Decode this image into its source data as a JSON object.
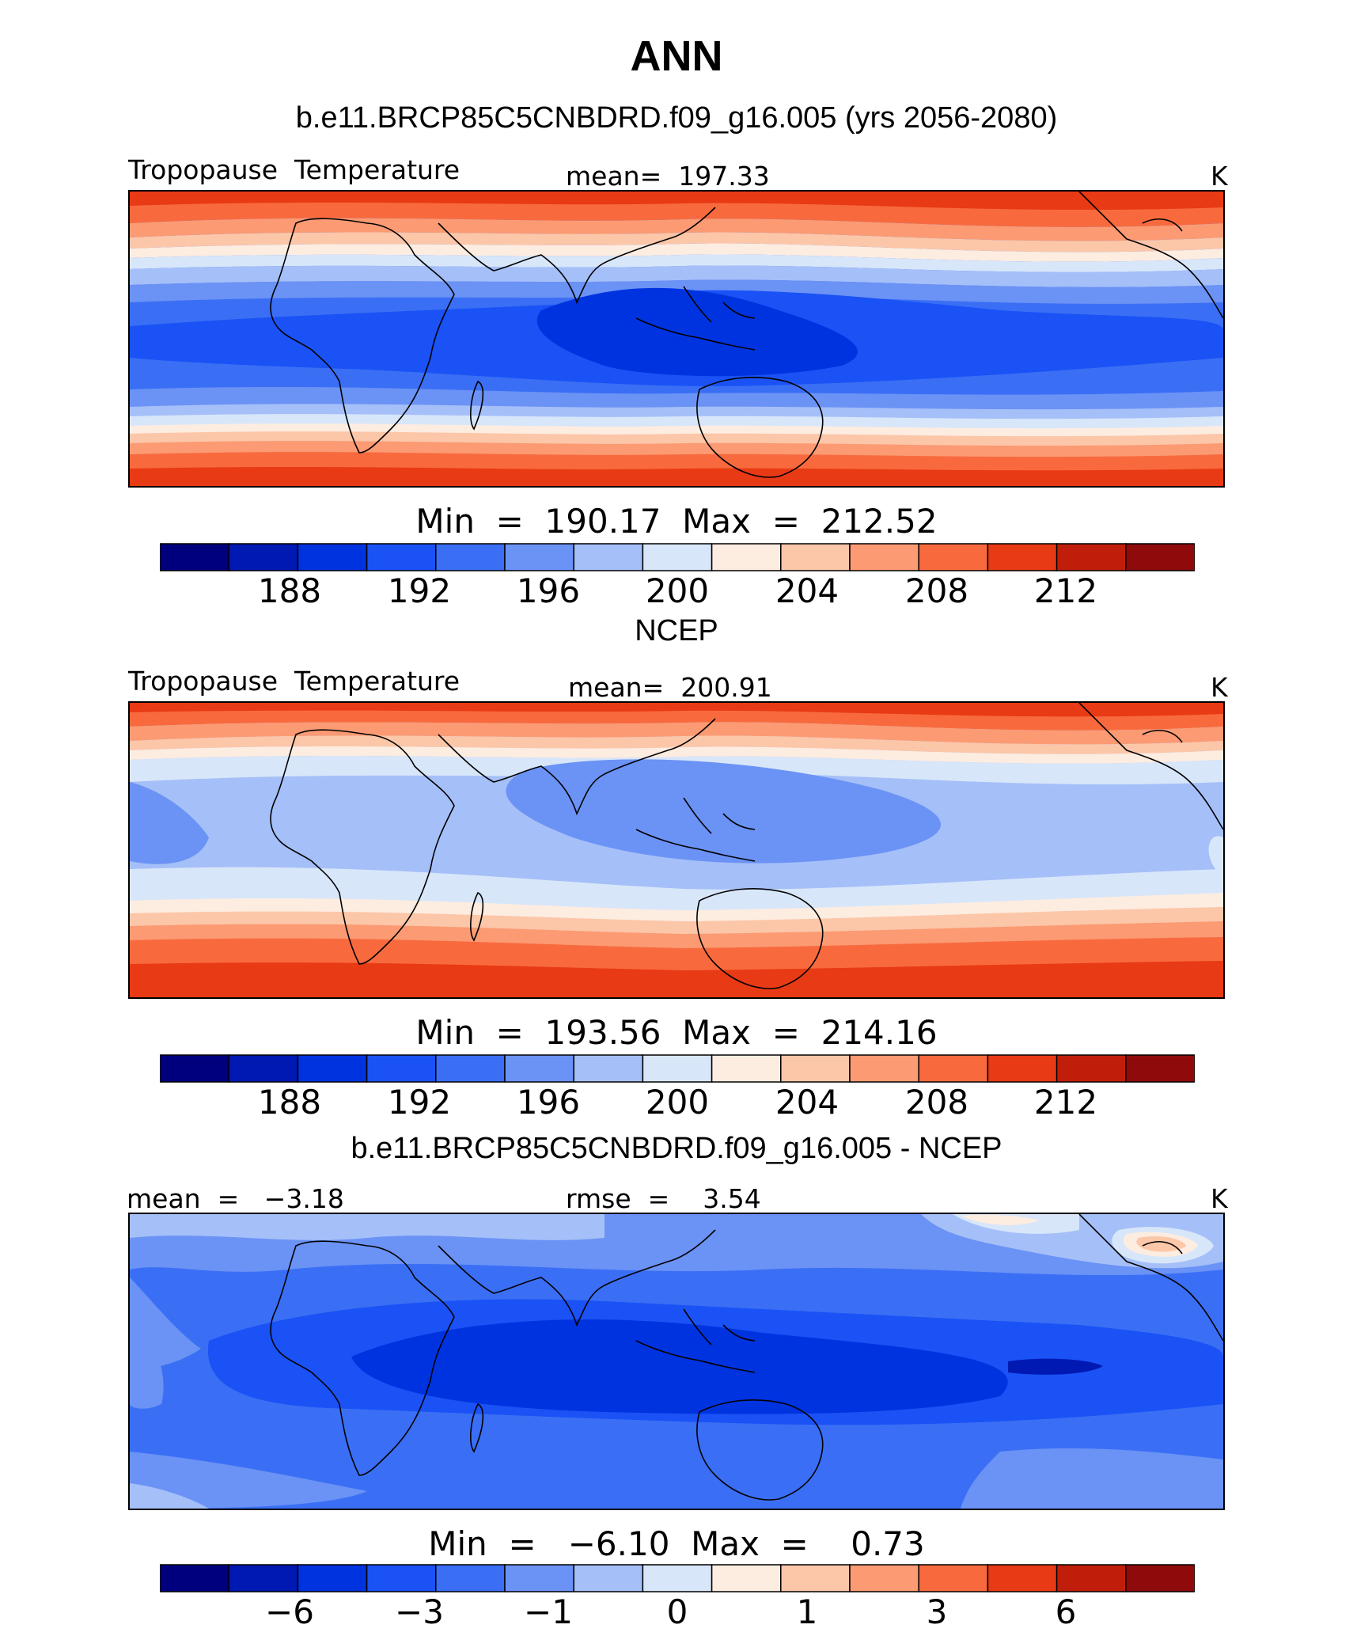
{
  "title": "ANN",
  "palette": [
    "#00007f",
    "#0019b2",
    "#0033e0",
    "#1a52f5",
    "#3a6ff5",
    "#6b92f5",
    "#a5bff8",
    "#d8e6fa",
    "#fdece0",
    "#fcc6a8",
    "#fb9a73",
    "#f86a3e",
    "#e83a14",
    "#c01e0a",
    "#8f0a0a"
  ],
  "panels": [
    {
      "title": "b.e11.BRCP85C5CNBDRD.f09_g16.005 (yrs 2056-2080)",
      "left_label": "Tropopause  Temperature",
      "center_label": "mean=  197.33",
      "units": "K",
      "stats": "Min  =  190.17  Max  =  212.52",
      "ticks": [
        "188",
        "192",
        "196",
        "200",
        "204",
        "208",
        "212"
      ]
    },
    {
      "title": "NCEP",
      "left_label": "Tropopause  Temperature",
      "center_label": "mean=  200.91",
      "units": "K",
      "stats": "Min  =  193.56  Max  =  214.16",
      "ticks": [
        "188",
        "192",
        "196",
        "200",
        "204",
        "208",
        "212"
      ]
    },
    {
      "title": "b.e11.BRCP85C5CNBDRD.f09_g16.005 - NCEP",
      "left_label": "mean  =   −3.18",
      "center_label": "rmse  =    3.54",
      "units": "K",
      "stats": "Min  =   −6.10  Max  =    0.73",
      "ticks": [
        "−6",
        "−3",
        "−1",
        "0",
        "1",
        "3",
        "6"
      ]
    }
  ]
}
